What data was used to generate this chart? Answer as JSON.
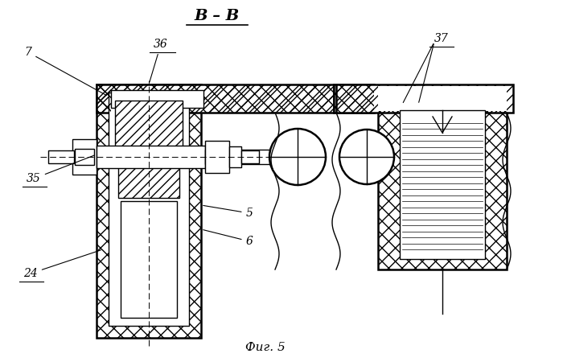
{
  "title": "В – В",
  "caption": "Фиг. 5",
  "bg_color": "#ffffff",
  "line_color": "#000000"
}
